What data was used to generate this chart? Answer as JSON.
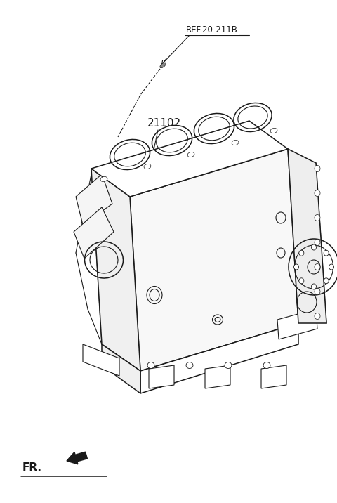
{
  "bg_color": "#ffffff",
  "line_color": "#1a1a1a",
  "fig_width": 4.8,
  "fig_height": 7.16,
  "dpi": 100,
  "ref_label": "REF.20-211B",
  "part_label": "21102",
  "fr_label": "FR."
}
